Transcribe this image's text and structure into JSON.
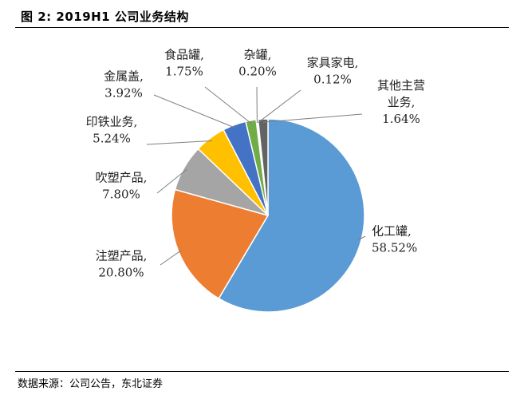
{
  "figure": {
    "title": "图 2: 2019H1 公司业务结构",
    "source": "数据来源：公司公告，东北证券"
  },
  "chart_data": {
    "type": "pie",
    "slices": [
      {
        "name": "化工罐",
        "name_lines": [
          "化工罐,"
        ],
        "value": 58.52,
        "value_label": "58.52%",
        "color": "#5B9BD5"
      },
      {
        "name": "注塑产品",
        "name_lines": [
          "注塑产品,"
        ],
        "value": 20.8,
        "value_label": "20.80%",
        "color": "#ED7D31"
      },
      {
        "name": "吹塑产品",
        "name_lines": [
          "吹塑产品,"
        ],
        "value": 7.8,
        "value_label": "7.80%",
        "color": "#A5A5A5"
      },
      {
        "name": "印铁业务",
        "name_lines": [
          "印铁业务,"
        ],
        "value": 5.24,
        "value_label": "5.24%",
        "color": "#FFC000"
      },
      {
        "name": "金属盖",
        "name_lines": [
          "金属盖,"
        ],
        "value": 3.92,
        "value_label": "3.92%",
        "color": "#4472C4"
      },
      {
        "name": "食品罐",
        "name_lines": [
          "食品罐,"
        ],
        "value": 1.75,
        "value_label": "1.75%",
        "color": "#70AD47"
      },
      {
        "name": "杂罐",
        "name_lines": [
          "杂罐,"
        ],
        "value": 0.2,
        "value_label": "0.20%",
        "color": "#255E91"
      },
      {
        "name": "家具家电",
        "name_lines": [
          "家具家电,"
        ],
        "value": 0.12,
        "value_label": "0.12%",
        "color": "#9E480E"
      },
      {
        "name": "其他主营业务",
        "name_lines": [
          "其他主营",
          "业务,"
        ],
        "value": 1.64,
        "value_label": "1.64%",
        "color": "#636363"
      }
    ],
    "start": "12 o'clock",
    "direction": "clockwise",
    "legend": "none",
    "data_labels": "outside with leader lines"
  }
}
